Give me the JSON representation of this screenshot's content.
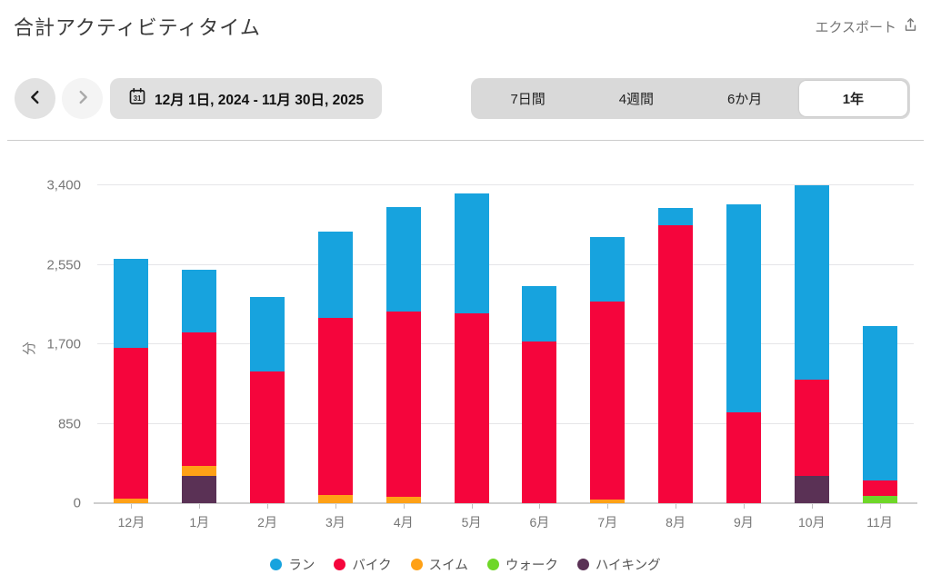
{
  "header": {
    "title": "合計アクティビティタイム",
    "export_label": "エクスポート"
  },
  "controls": {
    "date_range": "12月 1日, 2024 - 11月 30日, 2025",
    "calendar_icon_day": "31",
    "tabs": [
      {
        "label": "7日間",
        "selected": false
      },
      {
        "label": "4週間",
        "selected": false
      },
      {
        "label": "6か月",
        "selected": false
      },
      {
        "label": "1年",
        "selected": true
      }
    ]
  },
  "chart_data": {
    "type": "bar",
    "stacked": true,
    "title": "合計アクティビティタイム",
    "xlabel": "",
    "ylabel": "分",
    "ylim": [
      0,
      3400
    ],
    "grid": true,
    "legend_position": "bottom",
    "yticks": [
      {
        "value": 0,
        "label": "0"
      },
      {
        "value": 850,
        "label": "850"
      },
      {
        "value": 1700,
        "label": "1,700"
      },
      {
        "value": 2550,
        "label": "2,550"
      },
      {
        "value": 3400,
        "label": "3,400"
      }
    ],
    "categories": [
      "12月",
      "1月",
      "2月",
      "3月",
      "4月",
      "5月",
      "6月",
      "7月",
      "8月",
      "9月",
      "10月",
      "11月"
    ],
    "series": [
      {
        "name": "ラン",
        "color": "#17a3de",
        "values": [
          950,
          670,
          795,
          920,
          1120,
          1280,
          595,
          690,
          180,
          2225,
          2080,
          1645
        ]
      },
      {
        "name": "バイク",
        "color": "#f5053c",
        "values": [
          1615,
          1430,
          1410,
          1895,
          1985,
          2035,
          1725,
          2120,
          2975,
          970,
          1030,
          170
        ]
      },
      {
        "name": "スイム",
        "color": "#ffa116",
        "values": [
          45,
          100,
          0,
          90,
          65,
          0,
          0,
          40,
          0,
          0,
          0,
          0
        ]
      },
      {
        "name": "ウォーク",
        "color": "#6fd728",
        "values": [
          0,
          0,
          0,
          0,
          0,
          0,
          0,
          0,
          0,
          0,
          0,
          75
        ]
      },
      {
        "name": "ハイキング",
        "color": "#5a3155",
        "values": [
          0,
          295,
          0,
          0,
          0,
          0,
          0,
          0,
          0,
          0,
          295,
          0
        ]
      }
    ]
  }
}
